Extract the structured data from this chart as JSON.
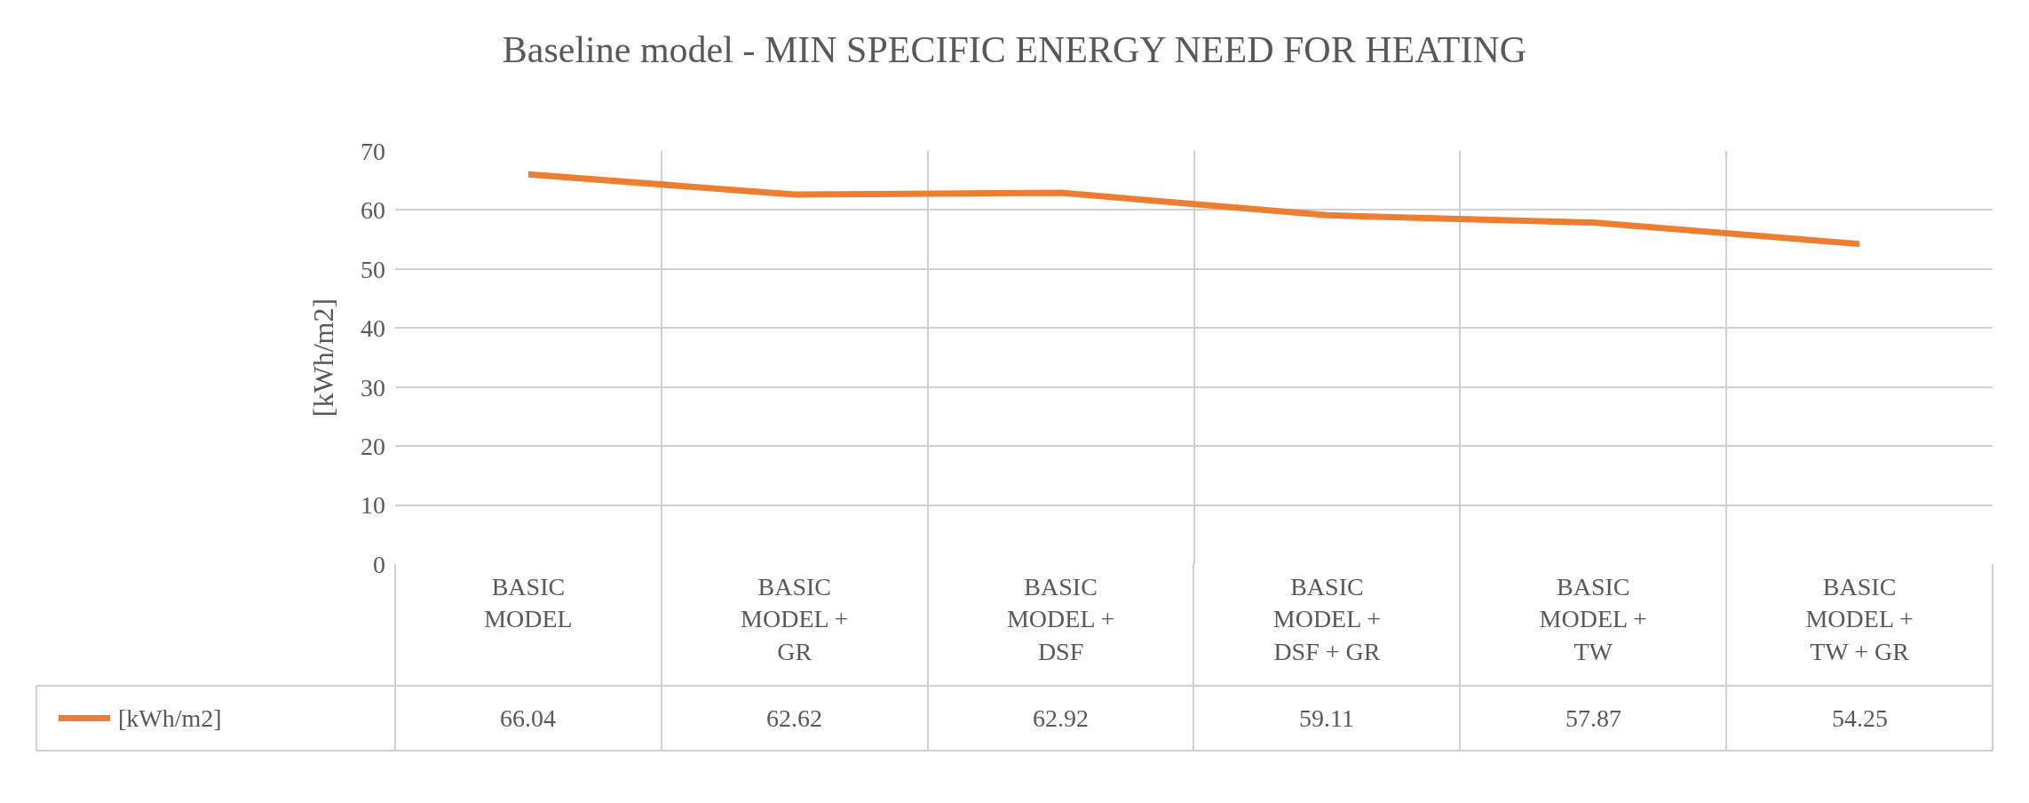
{
  "chart_data": {
    "type": "line",
    "title": "Baseline model - MIN SPECIFIC ENERGY NEED FOR HEATING",
    "ylabel": "[kWh/m2]",
    "categories": [
      "BASIC MODEL",
      "BASIC MODEL + GR",
      "BASIC MODEL + DSF",
      "BASIC MODEL + DSF + GR",
      "BASIC MODEL + TW",
      "BASIC MODEL + TW + GR"
    ],
    "series": [
      {
        "name": "[kWh/m2]",
        "color": "#ed7d31",
        "values": [
          66.04,
          62.62,
          62.92,
          59.11,
          57.87,
          54.25
        ]
      }
    ],
    "ylim": [
      0,
      70
    ],
    "yticks": [
      0,
      10,
      20,
      30,
      40,
      50,
      60,
      70
    ],
    "grid": true,
    "legend": "bottom left",
    "marker": "none",
    "line_style": "solid",
    "data_labels": true
  }
}
